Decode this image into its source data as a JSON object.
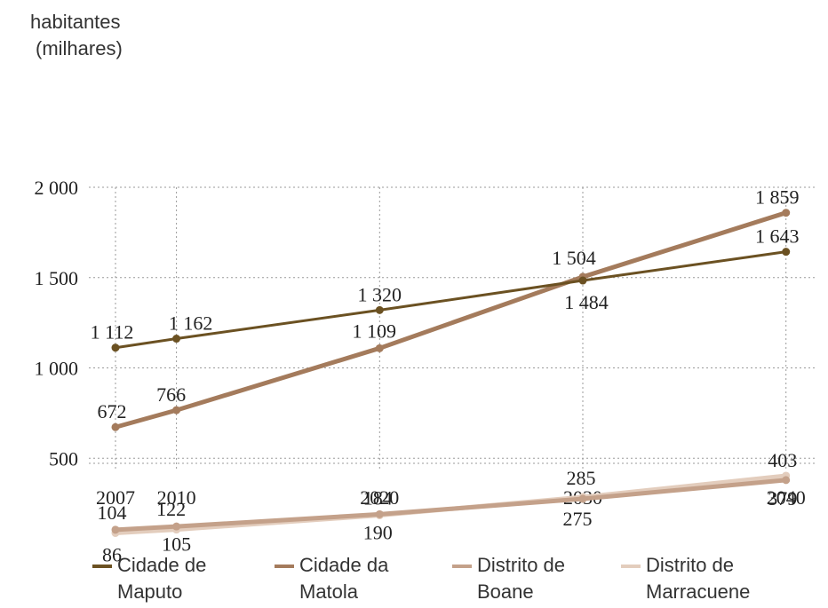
{
  "chart_data": {
    "type": "line",
    "ylabel_line1": "habitantes",
    "ylabel_line2": "(milhares)",
    "x": [
      2007,
      2010,
      2020,
      2030,
      2040
    ],
    "xticks": [
      "2007",
      "2010",
      "2020",
      "2030",
      "2040"
    ],
    "yticks": [
      {
        "value": 500,
        "label": "500"
      },
      {
        "value": 1000,
        "label": "1 000"
      },
      {
        "value": 1500,
        "label": "1 500"
      },
      {
        "value": 2000,
        "label": "2 000"
      }
    ],
    "ylim": [
      0,
      2000
    ],
    "grid": true,
    "legend_position": "bottom",
    "series": [
      {
        "name": "Cidade de Maputo",
        "color": "#6b5122",
        "values": [
          1112,
          1162,
          1320,
          1484,
          1643
        ],
        "labels": [
          "1 112",
          "1 162",
          "1 320",
          "1 484",
          "1 643"
        ]
      },
      {
        "name": "Cidade da Matola",
        "color": "#a47b5c",
        "values": [
          672,
          766,
          1109,
          1504,
          1859
        ],
        "labels": [
          "672",
          "766",
          "1 109",
          "1 504",
          "1 859"
        ]
      },
      {
        "name": "Distrito de Boane",
        "color": "#c4a18a",
        "values": [
          104,
          122,
          190,
          275,
          379
        ],
        "labels": [
          "104",
          "122",
          "190",
          "275",
          "379"
        ]
      },
      {
        "name": "Distrito de Marracuene",
        "color": "#e3cdbd",
        "values": [
          86,
          105,
          184,
          285,
          403
        ],
        "labels": [
          "86",
          "105",
          "184",
          "285",
          "403"
        ]
      }
    ]
  },
  "legend": [
    {
      "line1": "Cidade de",
      "line2": "Maputo",
      "color": "#6b5122"
    },
    {
      "line1": "Cidade da",
      "line2": "Matola",
      "color": "#a47b5c"
    },
    {
      "line1": "Distrito de",
      "line2": "Boane",
      "color": "#c4a18a"
    },
    {
      "line1": "Distrito de",
      "line2": "Marracuene",
      "color": "#e3cdbd"
    }
  ]
}
